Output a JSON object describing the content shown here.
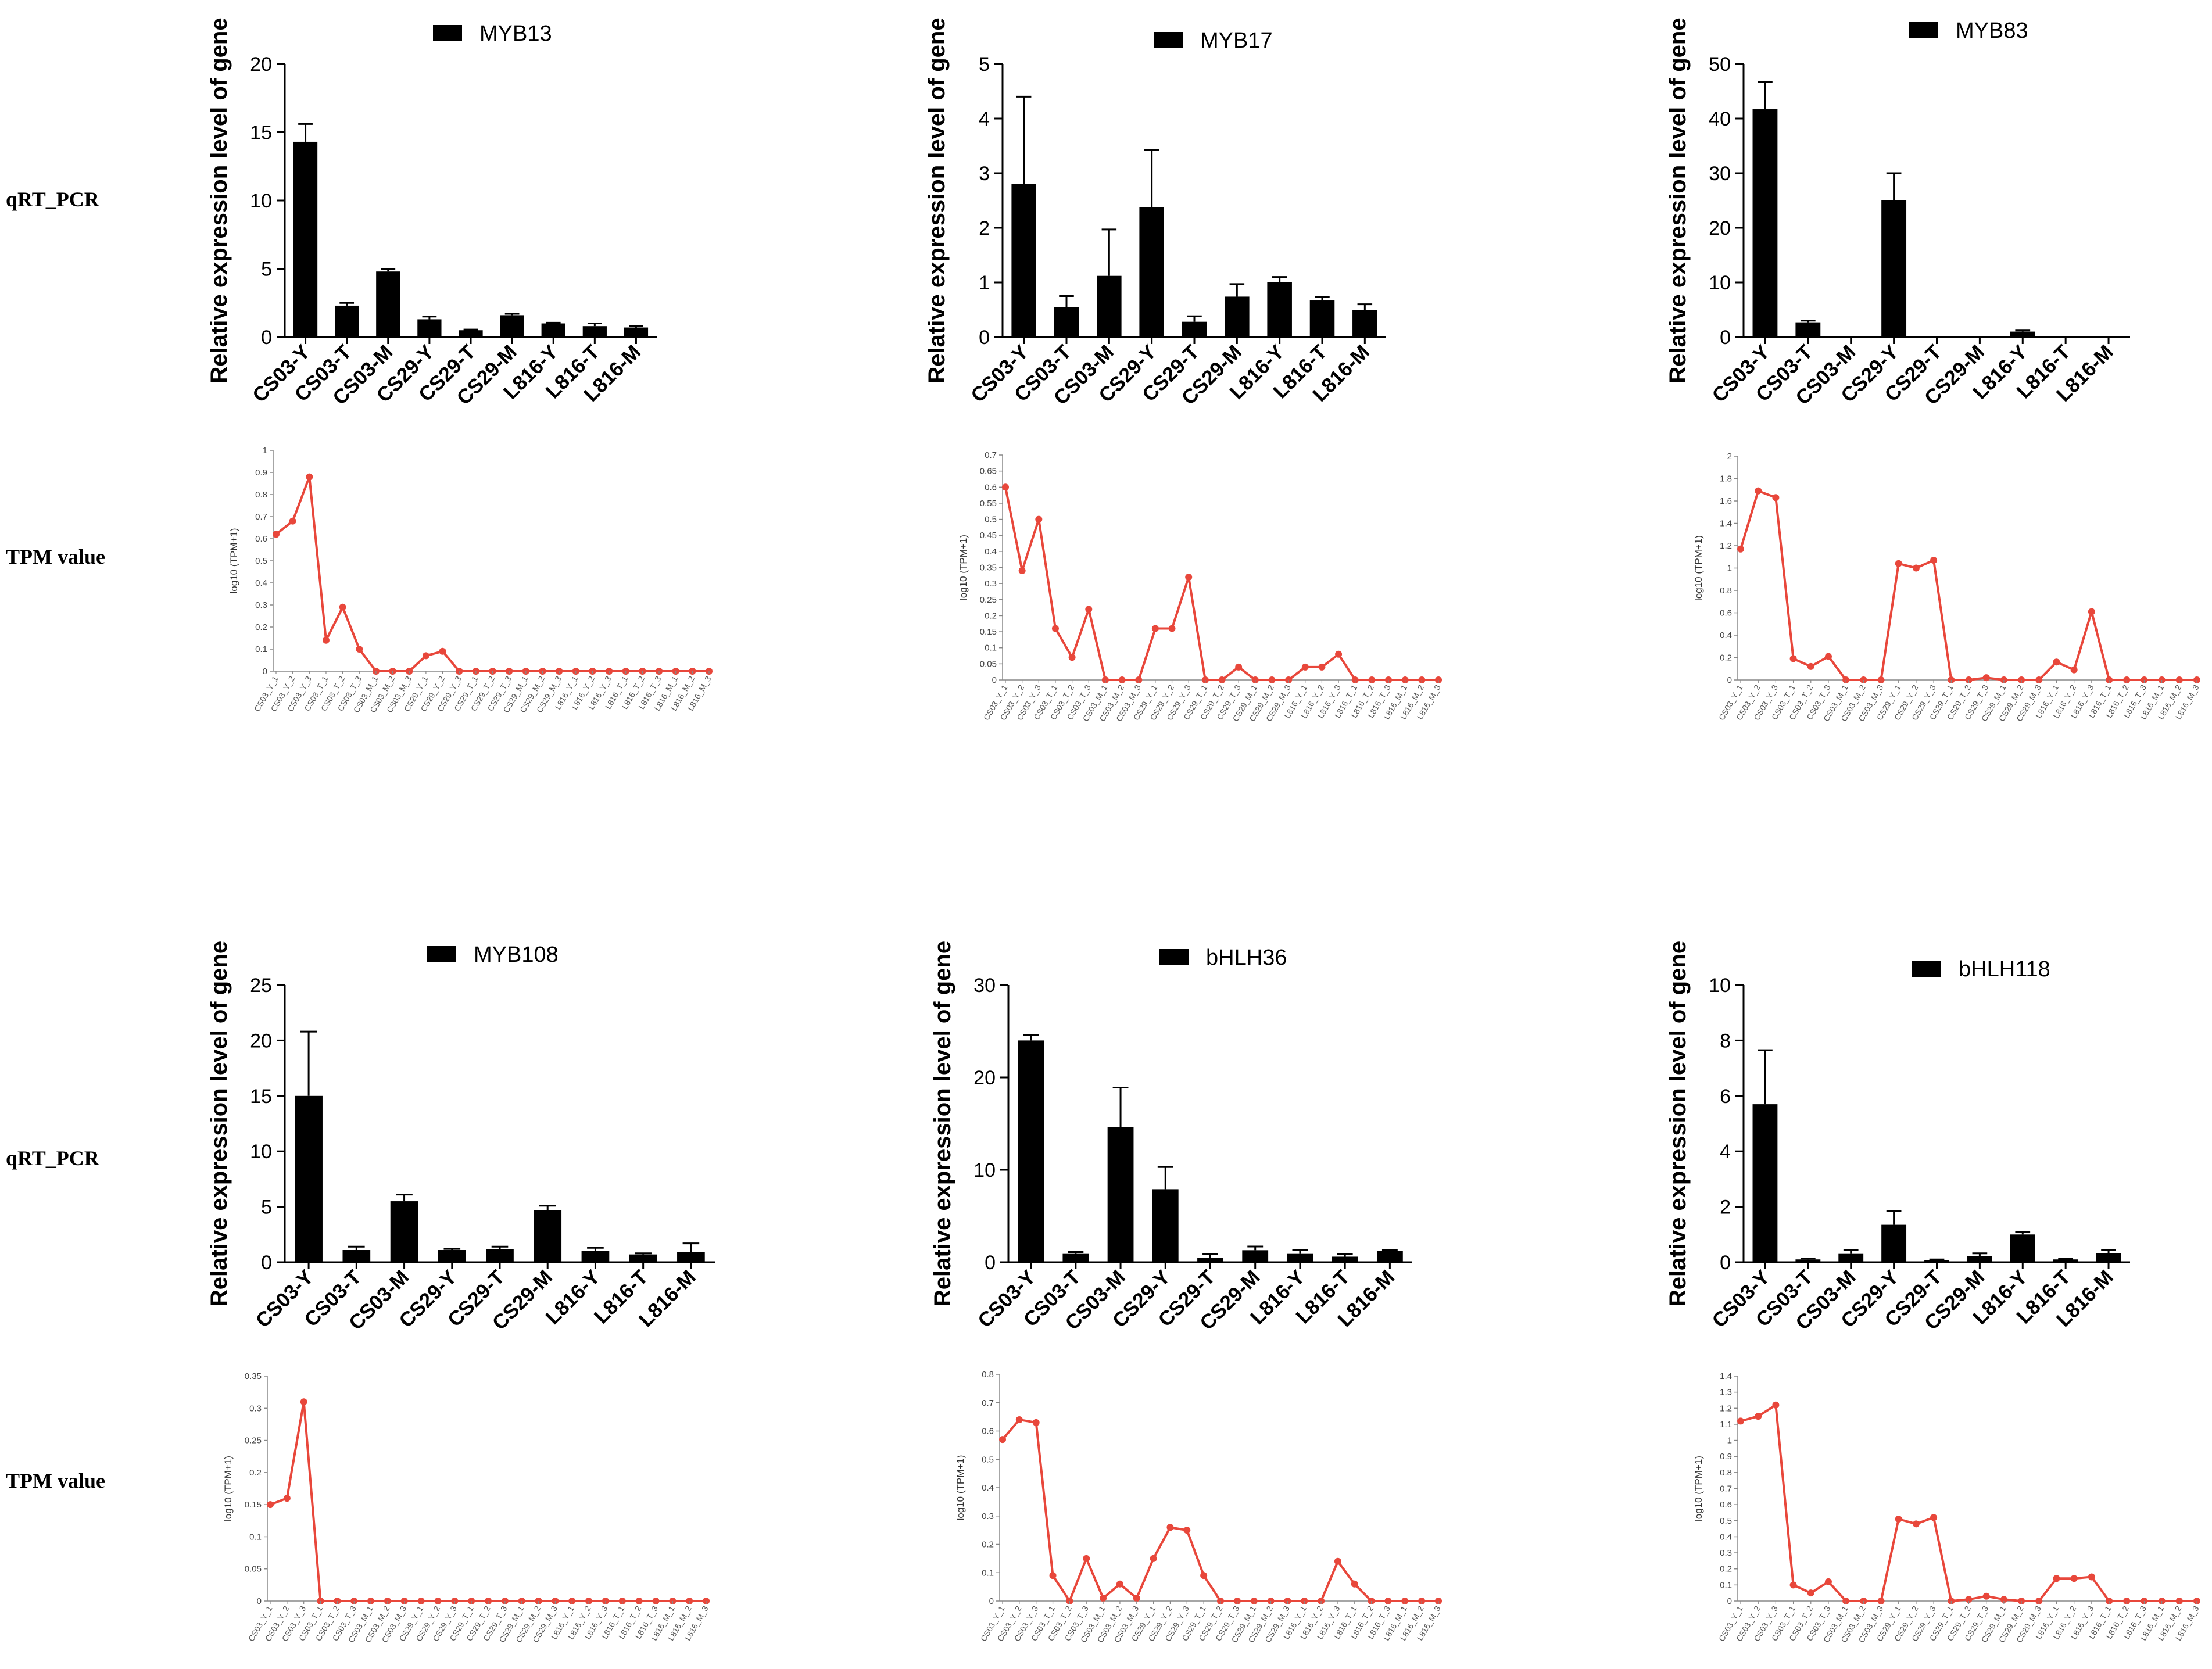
{
  "row_labels": {
    "qrt_top": "qRT_PCR",
    "tpm_top": "TPM value",
    "qrt_bottom": "qRT_PCR",
    "tpm_bottom": "TPM value"
  },
  "colors": {
    "bar": "#000000",
    "line": "#e8473b",
    "axis": "#000000",
    "line_axis": "#888888"
  },
  "chart_data": [
    {
      "id": "myb13-bar",
      "type": "bar",
      "title": "MYB13",
      "legend": "MYB13",
      "ylabel": "Relative expression level of gene",
      "categories": [
        "CS03-Y",
        "CS03-T",
        "CS03-M",
        "CS29-Y",
        "CS29-T",
        "CS29-M",
        "L816-Y",
        "L816-T",
        "L816-M"
      ],
      "values": [
        14.3,
        2.3,
        4.8,
        1.3,
        0.5,
        1.6,
        1.0,
        0.8,
        0.7
      ],
      "errors": [
        1.3,
        0.2,
        0.2,
        0.2,
        0.05,
        0.1,
        0.05,
        0.2,
        0.1
      ],
      "ylim": [
        0,
        20
      ],
      "yticks": [
        0,
        5,
        10,
        15,
        20
      ]
    },
    {
      "id": "myb17-bar",
      "type": "bar",
      "title": "MYB17",
      "legend": "MYB17",
      "ylabel": "Relative expression level of gene",
      "categories": [
        "CS03-Y",
        "CS03-T",
        "CS03-M",
        "CS29-Y",
        "CS29-T",
        "CS29-M",
        "L816-Y",
        "L816-T",
        "L816-M"
      ],
      "values": [
        2.8,
        0.55,
        1.12,
        2.38,
        0.28,
        0.74,
        1.0,
        0.67,
        0.5
      ],
      "errors": [
        1.6,
        0.2,
        0.85,
        1.05,
        0.1,
        0.23,
        0.1,
        0.07,
        0.1
      ],
      "ylim": [
        0,
        5
      ],
      "yticks": [
        0,
        1,
        2,
        3,
        4,
        5
      ]
    },
    {
      "id": "myb83-bar",
      "type": "bar",
      "title": "MYB83",
      "legend": "MYB83",
      "ylabel": "Relative expression level of gene",
      "categories": [
        "CS03-Y",
        "CS03-T",
        "CS03-M",
        "CS29-Y",
        "CS29-T",
        "CS29-M",
        "L816-Y",
        "L816-T",
        "L816-M"
      ],
      "values": [
        41.7,
        2.7,
        0,
        25.0,
        0,
        0,
        1.0,
        0,
        0
      ],
      "errors": [
        5.0,
        0.3,
        0,
        5.0,
        0,
        0,
        0.2,
        0,
        0
      ],
      "ylim": [
        0,
        50
      ],
      "yticks": [
        0,
        10,
        20,
        30,
        40,
        50
      ]
    },
    {
      "id": "myb108-bar",
      "type": "bar",
      "title": "MYB108",
      "legend": "MYB108",
      "ylabel": "Relative expression level of gene",
      "categories": [
        "CS03-Y",
        "CS03-T",
        "CS03-M",
        "CS29-Y",
        "CS29-T",
        "CS29-M",
        "L816-Y",
        "L816-T",
        "L816-M"
      ],
      "values": [
        15.0,
        1.1,
        5.5,
        1.1,
        1.2,
        4.7,
        1.0,
        0.7,
        0.9
      ],
      "errors": [
        5.8,
        0.3,
        0.6,
        0.1,
        0.2,
        0.4,
        0.3,
        0.1,
        0.8
      ],
      "ylim": [
        0,
        25
      ],
      "yticks": [
        0,
        5,
        10,
        15,
        20,
        25
      ]
    },
    {
      "id": "bhlh36-bar",
      "type": "bar",
      "title": "bHLH36",
      "legend": "bHLH36",
      "ylabel": "Relative expression level of gene",
      "categories": [
        "CS03-Y",
        "CS03-T",
        "CS03-M",
        "CS29-Y",
        "CS29-T",
        "CS29-M",
        "L816-Y",
        "L816-T",
        "L816-M"
      ],
      "values": [
        24.0,
        0.9,
        14.6,
        7.9,
        0.5,
        1.3,
        0.9,
        0.6,
        1.2
      ],
      "errors": [
        0.6,
        0.2,
        4.3,
        2.4,
        0.4,
        0.4,
        0.4,
        0.3,
        0.1
      ],
      "ylim": [
        0,
        30
      ],
      "yticks": [
        0,
        10,
        20,
        30
      ]
    },
    {
      "id": "bhlh118-bar",
      "type": "bar",
      "title": "bHLH118",
      "legend": "bHLH118",
      "ylabel": "Relative expression level of gene",
      "categories": [
        "CS03-Y",
        "CS03-T",
        "CS03-M",
        "CS29-Y",
        "CS29-T",
        "CS29-M",
        "L816-Y",
        "L816-T",
        "L816-M"
      ],
      "values": [
        5.7,
        0.1,
        0.3,
        1.35,
        0.07,
        0.22,
        1.0,
        0.1,
        0.33
      ],
      "errors": [
        1.95,
        0.03,
        0.15,
        0.5,
        0.03,
        0.1,
        0.08,
        0.02,
        0.1
      ],
      "ylim": [
        0,
        10
      ],
      "yticks": [
        0,
        2,
        4,
        6,
        8,
        10
      ]
    },
    {
      "id": "myb13-tpm",
      "type": "line",
      "ylabel": "log10 (TPM+1)",
      "categories": [
        "CS03_Y_1",
        "CS03_Y_2",
        "CS03_Y_3",
        "CS03_T_1",
        "CS03_T_2",
        "CS03_T_3",
        "CS03_M_1",
        "CS03_M_2",
        "CS03_M_3",
        "CS29_Y_1",
        "CS29_Y_2",
        "CS29_Y_3",
        "CS29_T_1",
        "CS29_T_2",
        "CS29_T_3",
        "CS29_M_1",
        "CS29_M_2",
        "CS29_M_3",
        "L816_Y_1",
        "L816_Y_2",
        "L816_Y_3",
        "L816_T_1",
        "L816_T_2",
        "L816_T_3",
        "L816_M_1",
        "L816_M_2",
        "L816_M_3"
      ],
      "values": [
        0.62,
        0.68,
        0.88,
        0.14,
        0.29,
        0.1,
        0,
        0,
        0,
        0.07,
        0.09,
        0,
        0,
        0,
        0,
        0,
        0,
        0,
        0,
        0,
        0,
        0,
        0,
        0,
        0,
        0,
        0
      ],
      "ylim": [
        0,
        1
      ],
      "yticks": [
        0,
        0.1,
        0.2,
        0.3,
        0.4,
        0.5,
        0.6,
        0.7,
        0.8,
        0.9,
        1
      ]
    },
    {
      "id": "myb17-tpm",
      "type": "line",
      "ylabel": "log10 (TPM+1)",
      "categories": [
        "CS03_Y_1",
        "CS03_Y_2",
        "CS03_Y_3",
        "CS03_T_1",
        "CS03_T_2",
        "CS03_T_3",
        "CS03_M_1",
        "CS03_M_2",
        "CS03_M_3",
        "CS29_Y_1",
        "CS29_Y_2",
        "CS29_Y_3",
        "CS29_T_1",
        "CS29_T_2",
        "CS29_T_3",
        "CS29_M_1",
        "CS29_M_2",
        "CS29_M_3",
        "L816_Y_1",
        "L816_Y_2",
        "L816_Y_3",
        "L816_T_1",
        "L816_T_2",
        "L816_T_3",
        "L816_M_1",
        "L816_M_2",
        "L816_M_3"
      ],
      "values": [
        0.6,
        0.34,
        0.5,
        0.16,
        0.07,
        0.22,
        0,
        0,
        0,
        0.16,
        0.16,
        0.32,
        0,
        0,
        0.04,
        0,
        0,
        0,
        0.04,
        0.04,
        0.08,
        0,
        0,
        0,
        0,
        0,
        0
      ],
      "ylim": [
        0,
        0.7
      ],
      "yticks": [
        0,
        0.05,
        0.1,
        0.15,
        0.2,
        0.25,
        0.3,
        0.35,
        0.4,
        0.45,
        0.5,
        0.55,
        0.6,
        0.65,
        0.7
      ]
    },
    {
      "id": "myb83-tpm",
      "type": "line",
      "ylabel": "log10 (TPM+1)",
      "categories": [
        "CS03_Y_1",
        "CS03_Y_2",
        "CS03_Y_3",
        "CS03_T_1",
        "CS03_T_2",
        "CS03_T_3",
        "CS03_M_1",
        "CS03_M_2",
        "CS03_M_3",
        "CS29_Y_1",
        "CS29_Y_2",
        "CS29_Y_3",
        "CS29_T_1",
        "CS29_T_2",
        "CS29_T_3",
        "CS29_M_1",
        "CS29_M_2",
        "CS29_M_3",
        "L816_Y_1",
        "L816_Y_2",
        "L816_Y_3",
        "L816_T_1",
        "L816_T_2",
        "L816_T_3",
        "L816_M_1",
        "L816_M_2",
        "L816_M_3"
      ],
      "values": [
        1.17,
        1.69,
        1.63,
        0.19,
        0.12,
        0.21,
        0,
        0,
        0,
        1.04,
        1.0,
        1.07,
        0,
        0,
        0.02,
        0,
        0,
        0,
        0.16,
        0.09,
        0.61,
        0,
        0,
        0,
        0,
        0,
        0
      ],
      "ylim": [
        0,
        2
      ],
      "yticks": [
        0,
        0.2,
        0.4,
        0.6,
        0.8,
        1,
        1.2,
        1.4,
        1.6,
        1.8,
        2
      ]
    },
    {
      "id": "myb108-tpm",
      "type": "line",
      "ylabel": "log10 (TPM+1)",
      "categories": [
        "CS03_Y_1",
        "CS03_Y_2",
        "CS03_Y_3",
        "CS03_T_1",
        "CS03_T_2",
        "CS03_T_3",
        "CS03_M_1",
        "CS03_M_2",
        "CS03_M_3",
        "CS29_Y_1",
        "CS29_Y_2",
        "CS29_Y_3",
        "CS29_T_1",
        "CS29_T_2",
        "CS29_T_3",
        "CS29_M_1",
        "CS29_M_2",
        "CS29_M_3",
        "L816_Y_1",
        "L816_Y_2",
        "L816_Y_3",
        "L816_T_1",
        "L816_T_2",
        "L816_T_3",
        "L816_M_1",
        "L816_M_2",
        "L816_M_3"
      ],
      "values": [
        0.15,
        0.16,
        0.31,
        0,
        0,
        0,
        0,
        0,
        0,
        0,
        0,
        0,
        0,
        0,
        0,
        0,
        0,
        0,
        0,
        0,
        0,
        0,
        0,
        0,
        0,
        0,
        0
      ],
      "ylim": [
        0,
        0.35
      ],
      "yticks": [
        0,
        0.05,
        0.1,
        0.15,
        0.2,
        0.25,
        0.3,
        0.35
      ]
    },
    {
      "id": "bhlh36-tpm",
      "type": "line",
      "ylabel": "log10 (TPM+1)",
      "categories": [
        "CS03_Y_1",
        "CS03_Y_2",
        "CS03_Y_3",
        "CS03_T_1",
        "CS03_T_2",
        "CS03_T_3",
        "CS03_M_1",
        "CS03_M_2",
        "CS03_M_3",
        "CS29_Y_1",
        "CS29_Y_2",
        "CS29_Y_3",
        "CS29_T_1",
        "CS29_T_2",
        "CS29_T_3",
        "CS29_M_1",
        "CS29_M_2",
        "CS29_M_3",
        "L816_Y_1",
        "L816_Y_2",
        "L816_Y_3",
        "L816_T_1",
        "L816_T_2",
        "L816_T_3",
        "L816_M_1",
        "L816_M_2",
        "L816_M_3"
      ],
      "values": [
        0.57,
        0.64,
        0.63,
        0.09,
        0,
        0.15,
        0.01,
        0.06,
        0.01,
        0.15,
        0.26,
        0.25,
        0.09,
        0,
        0,
        0,
        0,
        0,
        0,
        0,
        0.14,
        0.06,
        0,
        0,
        0,
        0,
        0
      ],
      "ylim": [
        0,
        0.8
      ],
      "yticks": [
        0,
        0.1,
        0.2,
        0.3,
        0.4,
        0.5,
        0.6,
        0.7,
        0.8
      ]
    },
    {
      "id": "bhlh118-tpm",
      "type": "line",
      "ylabel": "log10 (TPM+1)",
      "categories": [
        "CS03_Y_1",
        "CS03_Y_2",
        "CS03_Y_3",
        "CS03_T_1",
        "CS03_T_2",
        "CS03_T_3",
        "CS03_M_1",
        "CS03_M_2",
        "CS03_M_3",
        "CS29_Y_1",
        "CS29_Y_2",
        "CS29_Y_3",
        "CS29_T_1",
        "CS29_T_2",
        "CS29_T_3",
        "CS29_M_1",
        "CS29_M_2",
        "CS29_M_3",
        "L816_Y_1",
        "L816_Y_2",
        "L816_Y_3",
        "L816_T_1",
        "L816_T_2",
        "L816_T_3",
        "L816_M_1",
        "L816_M_2",
        "L816_M_3"
      ],
      "values": [
        1.12,
        1.15,
        1.22,
        0.1,
        0.05,
        0.12,
        0,
        0,
        0,
        0.51,
        0.48,
        0.52,
        0,
        0.01,
        0.03,
        0.01,
        0,
        0,
        0.14,
        0.14,
        0.15,
        0,
        0,
        0,
        0,
        0,
        0
      ],
      "ylim": [
        0,
        1.4
      ],
      "yticks": [
        0,
        0.1,
        0.2,
        0.3,
        0.4,
        0.5,
        0.6,
        0.7,
        0.8,
        0.9,
        1,
        1.1,
        1.2,
        1.3,
        1.4
      ]
    }
  ]
}
